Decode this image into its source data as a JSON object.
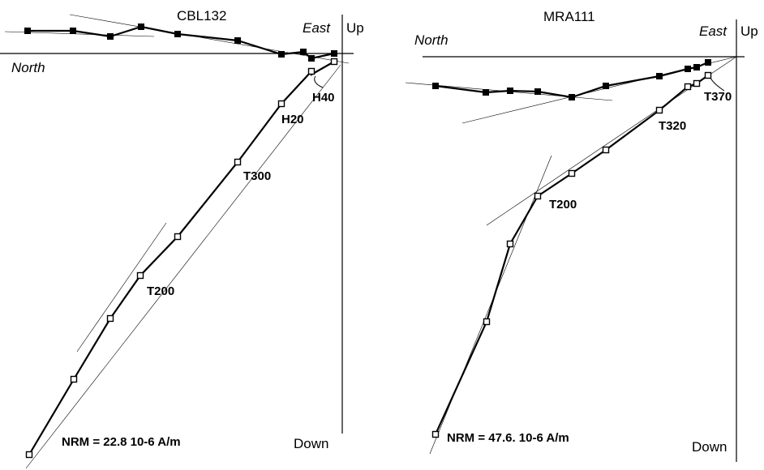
{
  "figure": {
    "panels": [
      {
        "title": "CBL132",
        "north": "North",
        "east": "East",
        "up": "Up",
        "down": "Down",
        "nrm": "NRM =  22.8 10-6 A/m",
        "labels": [
          "H40",
          "H20",
          "T300",
          "T200"
        ]
      },
      {
        "title": "MRA111",
        "north": "North",
        "east": "East",
        "up": "Up",
        "down": "Down",
        "nrm": "NRM =  47.6. 10-6 A/m",
        "labels": [
          "T370",
          "T320",
          "T200"
        ]
      }
    ]
  },
  "chart_data": [
    {
      "type": "scatter",
      "title": "CBL132",
      "description_axes": [
        "North",
        "East",
        "Up",
        "Down"
      ],
      "series": [
        {
          "symbol": "filled-square",
          "x": [
            -390,
            -335,
            -290,
            -250,
            -205,
            -130,
            -75,
            -48,
            -38,
            -10
          ],
          "y": [
            27,
            27,
            21,
            33,
            25,
            16,
            -2,
            0,
            -8,
            -3
          ]
        },
        {
          "symbol": "open-square",
          "x": [
            -385,
            -332,
            -288,
            -250,
            -205,
            -130,
            -75,
            -45,
            -38,
            -10
          ],
          "y": [
            -497,
            -404,
            -329,
            -276,
            -227,
            -135,
            -62,
            -29,
            -23,
            -9
          ]
        }
      ],
      "step_labels": [
        "H40",
        "H20",
        "T300",
        "T200"
      ],
      "nrm": "NRM =  22.8 10-6 A/m"
    },
    {
      "type": "scatter",
      "title": "MRA111",
      "description_axes": [
        "North",
        "East",
        "Up",
        "Down"
      ],
      "series": [
        {
          "symbol": "filled-square",
          "x": [
            -372,
            -310,
            -279,
            -245,
            -205,
            -161,
            -95,
            -61,
            -50,
            -36
          ],
          "y": [
            -38,
            -46,
            -44,
            -44,
            -51,
            -37,
            -26,
            -16,
            -14,
            -9
          ]
        },
        {
          "symbol": "open-square",
          "x": [
            -372,
            -310,
            -279,
            -245,
            -205,
            -161,
            -95,
            -61,
            -50,
            -36
          ],
          "y": [
            -468,
            -329,
            -233,
            -172,
            -145,
            -116,
            -67,
            -38,
            -34,
            -24
          ]
        }
      ],
      "step_labels": [
        "T370",
        "T320",
        "T200"
      ],
      "nrm": "NRM =  47.6. 10-6 A/m"
    }
  ]
}
